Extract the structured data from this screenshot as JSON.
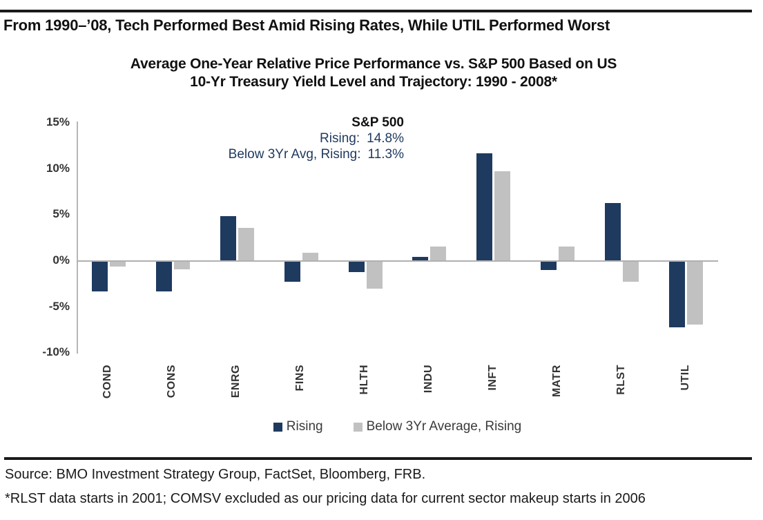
{
  "header": {
    "title": "From 1990–’08, Tech Performed Best Amid Rising Rates, While UTIL Performed Worst"
  },
  "chart": {
    "title_line1": "Average One-Year Relative Price Performance vs. S&P 500 Based on US",
    "title_line2": "10-Yr Treasury Yield Level and Trajectory: 1990 - 2008*",
    "annotation": {
      "title": "S&P 500",
      "line1_label": "Rising:",
      "line1_value": "14.8%",
      "line2_label": "Below 3Yr Avg, Rising:",
      "line2_value": "11.3%"
    }
  },
  "chart_data": {
    "type": "bar",
    "title": "Average One-Year Relative Price Performance vs. S&P 500 Based on US 10-Yr Treasury Yield Level and Trajectory: 1990 - 2008*",
    "categories": [
      "COND",
      "CONS",
      "ENRG",
      "FINS",
      "HLTH",
      "INDU",
      "INFT",
      "MATR",
      "RLST",
      "UTIL"
    ],
    "series": [
      {
        "name": "Rising",
        "color": "#1e3a5f",
        "values": [
          -3.2,
          -3.2,
          4.8,
          -2.2,
          -1.1,
          0.4,
          11.6,
          -0.9,
          6.2,
          -7.1
        ]
      },
      {
        "name": "Below 3Yr Average, Rising",
        "color": "#c1c1c1",
        "values": [
          -0.5,
          -0.8,
          3.5,
          0.8,
          -2.9,
          1.5,
          9.7,
          1.5,
          -2.2,
          -6.8
        ]
      }
    ],
    "ylabel": "",
    "xlabel": "",
    "ylim": [
      -10,
      15
    ],
    "yticks": [
      15,
      10,
      5,
      0,
      -5,
      -10
    ],
    "ytick_labels": [
      "15%",
      "10%",
      "5%",
      "0%",
      "-5%",
      "-10%"
    ],
    "grid": false,
    "legend_position": "bottom",
    "annotations": [
      {
        "text": "S&P 500",
        "style": "bold"
      },
      {
        "text": "Rising: 14.8%"
      },
      {
        "text": "Below 3Yr Avg, Rising: 11.3%"
      }
    ]
  },
  "footer": {
    "source": "Source: BMO Investment Strategy Group, FactSet, Bloomberg, FRB.",
    "footnote": "*RLST data starts in 2001; COMSV excluded as our pricing data for current sector makeup starts in 2006"
  }
}
